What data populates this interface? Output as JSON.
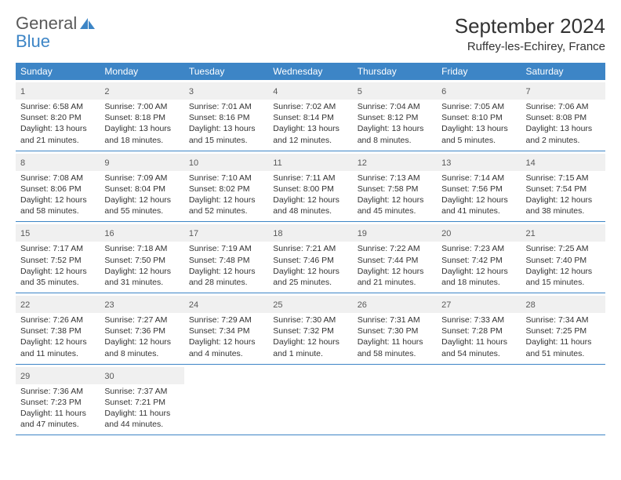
{
  "logo": {
    "text1": "General",
    "text2": "Blue",
    "icon_fill": "#3d85c6"
  },
  "title": "September 2024",
  "location": "Ruffey-les-Echirey, France",
  "colors": {
    "header_bg": "#3d85c6",
    "header_text": "#ffffff",
    "daynum_bg": "#f0f0f0",
    "daynum_text": "#595959",
    "body_text": "#333333",
    "rule": "#3d85c6"
  },
  "weekdays": [
    "Sunday",
    "Monday",
    "Tuesday",
    "Wednesday",
    "Thursday",
    "Friday",
    "Saturday"
  ],
  "days": [
    {
      "n": "1",
      "sr": "6:58 AM",
      "ss": "8:20 PM",
      "dl": "13 hours and 21 minutes."
    },
    {
      "n": "2",
      "sr": "7:00 AM",
      "ss": "8:18 PM",
      "dl": "13 hours and 18 minutes."
    },
    {
      "n": "3",
      "sr": "7:01 AM",
      "ss": "8:16 PM",
      "dl": "13 hours and 15 minutes."
    },
    {
      "n": "4",
      "sr": "7:02 AM",
      "ss": "8:14 PM",
      "dl": "13 hours and 12 minutes."
    },
    {
      "n": "5",
      "sr": "7:04 AM",
      "ss": "8:12 PM",
      "dl": "13 hours and 8 minutes."
    },
    {
      "n": "6",
      "sr": "7:05 AM",
      "ss": "8:10 PM",
      "dl": "13 hours and 5 minutes."
    },
    {
      "n": "7",
      "sr": "7:06 AM",
      "ss": "8:08 PM",
      "dl": "13 hours and 2 minutes."
    },
    {
      "n": "8",
      "sr": "7:08 AM",
      "ss": "8:06 PM",
      "dl": "12 hours and 58 minutes."
    },
    {
      "n": "9",
      "sr": "7:09 AM",
      "ss": "8:04 PM",
      "dl": "12 hours and 55 minutes."
    },
    {
      "n": "10",
      "sr": "7:10 AM",
      "ss": "8:02 PM",
      "dl": "12 hours and 52 minutes."
    },
    {
      "n": "11",
      "sr": "7:11 AM",
      "ss": "8:00 PM",
      "dl": "12 hours and 48 minutes."
    },
    {
      "n": "12",
      "sr": "7:13 AM",
      "ss": "7:58 PM",
      "dl": "12 hours and 45 minutes."
    },
    {
      "n": "13",
      "sr": "7:14 AM",
      "ss": "7:56 PM",
      "dl": "12 hours and 41 minutes."
    },
    {
      "n": "14",
      "sr": "7:15 AM",
      "ss": "7:54 PM",
      "dl": "12 hours and 38 minutes."
    },
    {
      "n": "15",
      "sr": "7:17 AM",
      "ss": "7:52 PM",
      "dl": "12 hours and 35 minutes."
    },
    {
      "n": "16",
      "sr": "7:18 AM",
      "ss": "7:50 PM",
      "dl": "12 hours and 31 minutes."
    },
    {
      "n": "17",
      "sr": "7:19 AM",
      "ss": "7:48 PM",
      "dl": "12 hours and 28 minutes."
    },
    {
      "n": "18",
      "sr": "7:21 AM",
      "ss": "7:46 PM",
      "dl": "12 hours and 25 minutes."
    },
    {
      "n": "19",
      "sr": "7:22 AM",
      "ss": "7:44 PM",
      "dl": "12 hours and 21 minutes."
    },
    {
      "n": "20",
      "sr": "7:23 AM",
      "ss": "7:42 PM",
      "dl": "12 hours and 18 minutes."
    },
    {
      "n": "21",
      "sr": "7:25 AM",
      "ss": "7:40 PM",
      "dl": "12 hours and 15 minutes."
    },
    {
      "n": "22",
      "sr": "7:26 AM",
      "ss": "7:38 PM",
      "dl": "12 hours and 11 minutes."
    },
    {
      "n": "23",
      "sr": "7:27 AM",
      "ss": "7:36 PM",
      "dl": "12 hours and 8 minutes."
    },
    {
      "n": "24",
      "sr": "7:29 AM",
      "ss": "7:34 PM",
      "dl": "12 hours and 4 minutes."
    },
    {
      "n": "25",
      "sr": "7:30 AM",
      "ss": "7:32 PM",
      "dl": "12 hours and 1 minute."
    },
    {
      "n": "26",
      "sr": "7:31 AM",
      "ss": "7:30 PM",
      "dl": "11 hours and 58 minutes."
    },
    {
      "n": "27",
      "sr": "7:33 AM",
      "ss": "7:28 PM",
      "dl": "11 hours and 54 minutes."
    },
    {
      "n": "28",
      "sr": "7:34 AM",
      "ss": "7:25 PM",
      "dl": "11 hours and 51 minutes."
    },
    {
      "n": "29",
      "sr": "7:36 AM",
      "ss": "7:23 PM",
      "dl": "11 hours and 47 minutes."
    },
    {
      "n": "30",
      "sr": "7:37 AM",
      "ss": "7:21 PM",
      "dl": "11 hours and 44 minutes."
    }
  ],
  "labels": {
    "sunrise": "Sunrise: ",
    "sunset": "Sunset: ",
    "daylight": "Daylight: "
  }
}
